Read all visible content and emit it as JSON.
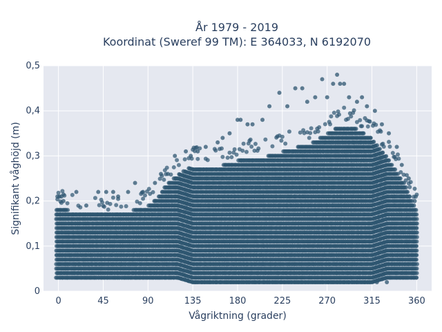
{
  "chart_data": {
    "type": "scatter",
    "title": "År 1979 - 2019",
    "subtitle": "Koordinat (Sweref 99 TM): E 364033, N 6192070",
    "xlabel": "Vågriktning (grader)",
    "ylabel": "Signifikant våghöjd (m)",
    "xlim": [
      -15,
      375
    ],
    "ylim": [
      0,
      0.5
    ],
    "x_ticks": [
      0,
      45,
      90,
      135,
      180,
      225,
      270,
      315,
      360
    ],
    "x_tick_labels": [
      "0",
      "45",
      "90",
      "135",
      "180",
      "225",
      "270",
      "315",
      "360"
    ],
    "y_ticks": [
      0,
      0.1,
      0.2,
      0.3,
      0.4,
      0.5
    ],
    "y_tick_labels": [
      "0",
      "0,1",
      "0,2",
      "0,3",
      "0,4",
      "0,5"
    ],
    "grid": true,
    "marker_color": "#2e5570",
    "plot_background": "#e5e8f0",
    "series": [
      {
        "core_band": {
          "description_free": true,
          "x": [
            -2,
            10,
            20,
            30,
            45,
            60,
            75,
            90,
            100,
            110,
            120,
            135,
            150,
            165,
            180,
            195,
            210,
            225,
            240,
            255,
            270,
            285,
            300,
            315,
            330,
            345,
            360
          ],
          "y_low": [
            0.03,
            0.03,
            0.03,
            0.03,
            0.03,
            0.03,
            0.03,
            0.03,
            0.03,
            0.03,
            0.03,
            0.02,
            0.02,
            0.02,
            0.02,
            0.02,
            0.02,
            0.02,
            0.02,
            0.02,
            0.02,
            0.02,
            0.02,
            0.02,
            0.03,
            0.03,
            0.03
          ],
          "y_high": [
            0.19,
            0.18,
            0.17,
            0.17,
            0.17,
            0.17,
            0.18,
            0.19,
            0.21,
            0.24,
            0.26,
            0.28,
            0.28,
            0.28,
            0.29,
            0.3,
            0.3,
            0.31,
            0.32,
            0.33,
            0.35,
            0.37,
            0.36,
            0.34,
            0.3,
            0.25,
            0.18
          ]
        },
        "outliers": [
          [
            -1,
            0.21
          ],
          [
            1,
            0.21
          ],
          [
            3,
            0.21
          ],
          [
            5,
            0.2
          ],
          [
            18,
            0.22
          ],
          [
            28,
            0.19
          ],
          [
            40,
            0.22
          ],
          [
            48,
            0.22
          ],
          [
            55,
            0.22
          ],
          [
            60,
            0.21
          ],
          [
            70,
            0.22
          ],
          [
            77,
            0.24
          ],
          [
            85,
            0.22
          ],
          [
            97,
            0.24
          ],
          [
            103,
            0.26
          ],
          [
            110,
            0.26
          ],
          [
            117,
            0.3
          ],
          [
            128,
            0.31
          ],
          [
            133,
            0.3
          ],
          [
            140,
            0.31
          ],
          [
            148,
            0.32
          ],
          [
            160,
            0.33
          ],
          [
            165,
            0.34
          ],
          [
            172,
            0.35
          ],
          [
            180,
            0.38
          ],
          [
            183,
            0.38
          ],
          [
            190,
            0.37
          ],
          [
            195,
            0.37
          ],
          [
            205,
            0.38
          ],
          [
            212,
            0.41
          ],
          [
            222,
            0.44
          ],
          [
            230,
            0.41
          ],
          [
            238,
            0.45
          ],
          [
            245,
            0.45
          ],
          [
            250,
            0.42
          ],
          [
            258,
            0.43
          ],
          [
            265,
            0.47
          ],
          [
            270,
            0.43
          ],
          [
            276,
            0.46
          ],
          [
            280,
            0.48
          ],
          [
            283,
            0.46
          ],
          [
            287,
            0.46
          ],
          [
            292,
            0.43
          ],
          [
            300,
            0.42
          ],
          [
            305,
            0.43
          ],
          [
            310,
            0.41
          ],
          [
            318,
            0.4
          ],
          [
            325,
            0.37
          ],
          [
            332,
            0.35
          ],
          [
            340,
            0.32
          ],
          [
            345,
            0.28
          ],
          [
            352,
            0.25
          ],
          [
            358,
            0.2
          ],
          [
            330,
            0.02
          ],
          [
            320,
            0.02
          ]
        ]
      }
    ]
  }
}
